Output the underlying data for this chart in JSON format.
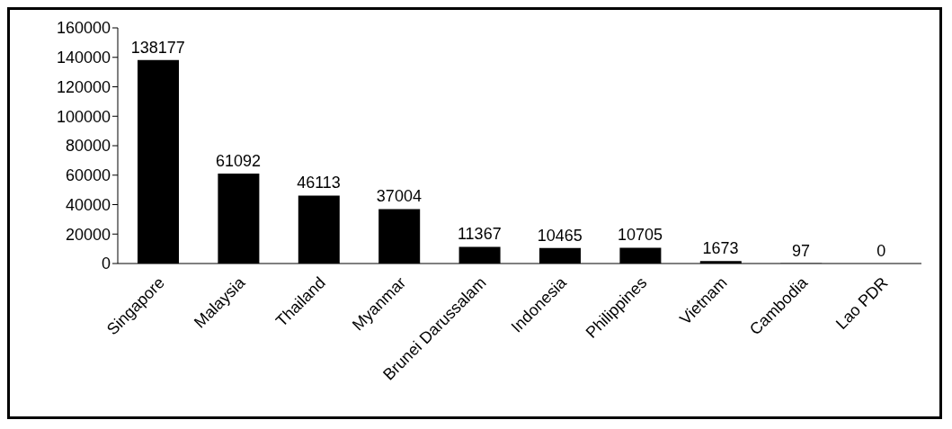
{
  "chart_data": {
    "type": "bar",
    "categories": [
      "Singapore",
      "Malaysia",
      "Thailand",
      "Myanmar",
      "Brunei Darussalam",
      "Indonesia",
      "Philippines",
      "Vietnam",
      "Cambodia",
      "Lao PDR"
    ],
    "values": [
      138177,
      61092,
      46113,
      37004,
      11367,
      10465,
      10705,
      1673,
      97,
      0
    ],
    "color": "#000000",
    "ylim": [
      0,
      160000
    ],
    "yticks": [
      0,
      20000,
      40000,
      60000,
      80000,
      100000,
      120000,
      140000,
      160000
    ],
    "grid": false,
    "legend": false,
    "data_labels": true
  }
}
